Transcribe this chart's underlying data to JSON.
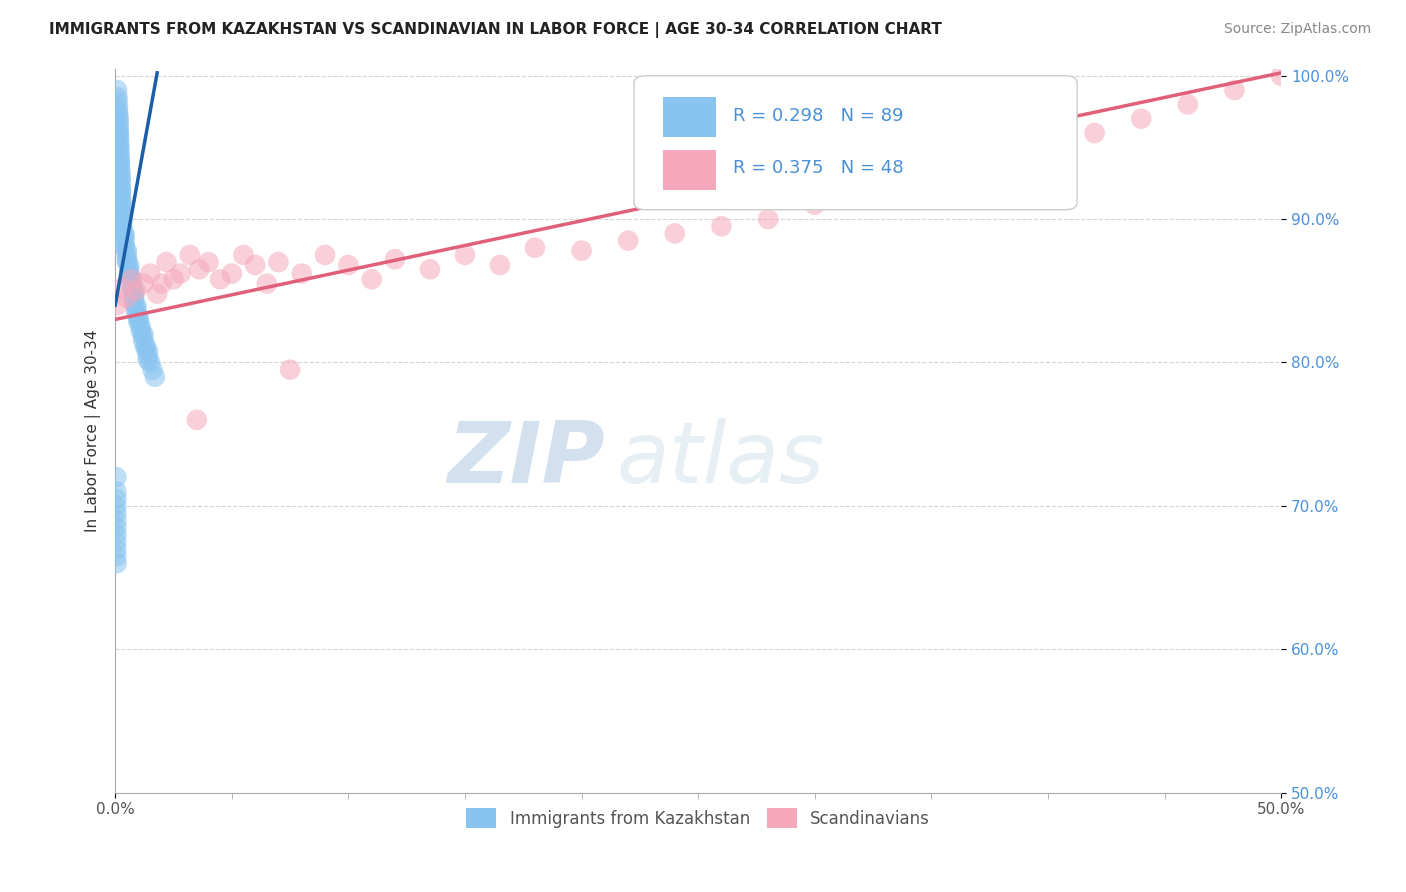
{
  "title": "IMMIGRANTS FROM KAZAKHSTAN VS SCANDINAVIAN IN LABOR FORCE | AGE 30-34 CORRELATION CHART",
  "source_text": "Source: ZipAtlas.com",
  "xlabel": "",
  "ylabel": "In Labor Force | Age 30-34",
  "xlim": [
    0.0,
    0.5
  ],
  "ylim": [
    0.5,
    1.005
  ],
  "xtick_minor_values": [
    0.05,
    0.1,
    0.15,
    0.2,
    0.25,
    0.3,
    0.35,
    0.4,
    0.45
  ],
  "xtick_edge_labels": {
    "0.0": "0.0%",
    "0.5": "50.0%"
  },
  "ytick_labels": [
    "100.0%",
    "90.0%",
    "80.0%",
    "70.0%",
    "60.0%",
    "50.0%"
  ],
  "ytick_values": [
    1.0,
    0.9,
    0.8,
    0.7,
    0.6,
    0.5
  ],
  "kazakhstan_color": "#89C4F0",
  "scandinavian_color": "#F5A8BC",
  "kazakhstan_trend_color": "#1a5fa8",
  "scandinavian_trend_color": "#e0607a",
  "r_kazakhstan": 0.298,
  "n_kazakhstan": 89,
  "r_scandinavian": 0.375,
  "n_scandinavian": 48,
  "legend_label_1": "Immigrants from Kazakhstan",
  "legend_label_2": "Scandinavians",
  "watermark_zip": "ZIP",
  "watermark_atlas": "atlas",
  "background_color": "#ffffff",
  "grid_color": "#cccccc",
  "kazakhstan_x": [
    0.0008,
    0.001,
    0.001,
    0.0012,
    0.0012,
    0.0014,
    0.0014,
    0.0015,
    0.0015,
    0.0015,
    0.0016,
    0.0016,
    0.0017,
    0.0017,
    0.0018,
    0.0018,
    0.0019,
    0.002,
    0.002,
    0.002,
    0.0022,
    0.0022,
    0.0023,
    0.0023,
    0.0024,
    0.0024,
    0.0025,
    0.0025,
    0.0026,
    0.0026,
    0.0027,
    0.0027,
    0.003,
    0.003,
    0.003,
    0.003,
    0.003,
    0.003,
    0.004,
    0.004,
    0.004,
    0.004,
    0.004,
    0.005,
    0.005,
    0.005,
    0.005,
    0.006,
    0.006,
    0.006,
    0.006,
    0.007,
    0.007,
    0.007,
    0.008,
    0.008,
    0.008,
    0.008,
    0.009,
    0.009,
    0.009,
    0.01,
    0.01,
    0.01,
    0.011,
    0.011,
    0.012,
    0.012,
    0.012,
    0.013,
    0.013,
    0.014,
    0.014,
    0.014,
    0.015,
    0.016,
    0.017,
    0.0005,
    0.0005,
    0.0005,
    0.0005,
    0.0005,
    0.0005,
    0.0005,
    0.0005,
    0.0005,
    0.0005,
    0.0005,
    0.0006
  ],
  "kazakhstan_y": [
    0.99,
    0.985,
    0.982,
    0.978,
    0.975,
    0.972,
    0.97,
    0.968,
    0.965,
    0.962,
    0.96,
    0.958,
    0.955,
    0.952,
    0.95,
    0.948,
    0.945,
    0.942,
    0.94,
    0.938,
    0.935,
    0.932,
    0.93,
    0.928,
    0.925,
    0.922,
    0.92,
    0.918,
    0.915,
    0.912,
    0.91,
    0.908,
    0.905,
    0.902,
    0.9,
    0.898,
    0.895,
    0.892,
    0.89,
    0.888,
    0.885,
    0.882,
    0.88,
    0.878,
    0.875,
    0.872,
    0.87,
    0.868,
    0.865,
    0.862,
    0.86,
    0.858,
    0.855,
    0.852,
    0.85,
    0.848,
    0.845,
    0.842,
    0.84,
    0.838,
    0.835,
    0.832,
    0.83,
    0.828,
    0.825,
    0.822,
    0.82,
    0.818,
    0.815,
    0.812,
    0.81,
    0.808,
    0.805,
    0.802,
    0.8,
    0.795,
    0.79,
    0.72,
    0.71,
    0.705,
    0.7,
    0.695,
    0.69,
    0.685,
    0.68,
    0.675,
    0.67,
    0.665,
    0.66
  ],
  "scandinavian_x": [
    0.001,
    0.003,
    0.005,
    0.007,
    0.009,
    0.012,
    0.015,
    0.018,
    0.02,
    0.022,
    0.025,
    0.028,
    0.032,
    0.036,
    0.04,
    0.045,
    0.05,
    0.055,
    0.06,
    0.065,
    0.07,
    0.08,
    0.09,
    0.1,
    0.11,
    0.12,
    0.135,
    0.15,
    0.165,
    0.18,
    0.2,
    0.22,
    0.24,
    0.26,
    0.28,
    0.3,
    0.32,
    0.34,
    0.36,
    0.38,
    0.4,
    0.42,
    0.44,
    0.46,
    0.48,
    0.5,
    0.035,
    0.075
  ],
  "scandinavian_y": [
    0.84,
    0.852,
    0.845,
    0.858,
    0.85,
    0.855,
    0.862,
    0.848,
    0.855,
    0.87,
    0.858,
    0.862,
    0.875,
    0.865,
    0.87,
    0.858,
    0.862,
    0.875,
    0.868,
    0.855,
    0.87,
    0.862,
    0.875,
    0.868,
    0.858,
    0.872,
    0.865,
    0.875,
    0.868,
    0.88,
    0.878,
    0.885,
    0.89,
    0.895,
    0.9,
    0.91,
    0.918,
    0.925,
    0.932,
    0.94,
    0.95,
    0.96,
    0.97,
    0.98,
    0.99,
    1.0,
    0.76,
    0.795
  ],
  "kaz_trend_x": [
    0.0,
    0.018
  ],
  "kaz_trend_y": [
    0.84,
    1.002
  ],
  "scan_trend_x": [
    0.0,
    0.5
  ],
  "scan_trend_y": [
    0.83,
    1.002
  ],
  "title_fontsize": 11,
  "axis_label_fontsize": 11,
  "tick_fontsize": 11,
  "legend_fontsize": 13,
  "source_fontsize": 10
}
